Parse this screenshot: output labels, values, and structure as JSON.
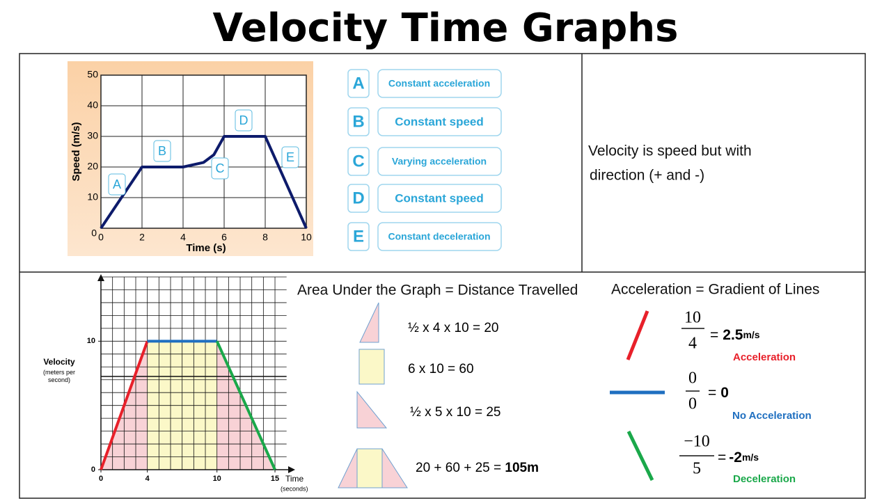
{
  "title": "Velocity Time Graphs",
  "chart_data": [
    {
      "type": "line",
      "x": [
        0,
        2,
        4,
        5,
        5.5,
        6,
        8,
        10
      ],
      "values": [
        0,
        20,
        20,
        21.5,
        24,
        30,
        30,
        0
      ],
      "xlabel": "Time (s)",
      "ylabel": "Speed (m/s)",
      "xlim": [
        0,
        10
      ],
      "ylim": [
        0,
        50
      ],
      "xticks": [
        0,
        2,
        4,
        6,
        8,
        10
      ],
      "yticks": [
        0,
        10,
        20,
        30,
        40,
        50
      ],
      "grid": true,
      "color": "#0d1b6b",
      "annotations": [
        "A",
        "B",
        "C",
        "D",
        "E"
      ]
    },
    {
      "type": "line",
      "xlabel": "Time",
      "xlabel_note": "(seconds)",
      "ylabel": "Velocity",
      "ylabel_note": "(meters per second)",
      "xlim": [
        0,
        16
      ],
      "ylim": [
        0,
        15
      ],
      "xticks": [
        0,
        4,
        10,
        15
      ],
      "yticks": [
        0,
        10
      ],
      "grid": true,
      "series": [
        {
          "color": "#e8202a",
          "fill": "#f8d2d6",
          "x": [
            0,
            4
          ],
          "values": [
            0,
            10
          ]
        },
        {
          "color": "#1f6fc0",
          "fill": "#fbf8c8",
          "x": [
            4,
            10
          ],
          "values": [
            10,
            10
          ]
        },
        {
          "color": "#1aa84a",
          "fill": "#f8d2d6",
          "x": [
            10,
            15
          ],
          "values": [
            10,
            0
          ]
        }
      ]
    }
  ],
  "key": [
    {
      "letter": "A",
      "text": "Constant acceleration"
    },
    {
      "letter": "B",
      "text": "Constant speed"
    },
    {
      "letter": "C",
      "text": "Varying acceleration"
    },
    {
      "letter": "D",
      "text": "Constant speed"
    },
    {
      "letter": "E",
      "text": "Constant deceleration"
    }
  ],
  "note": [
    "Velocity is speed but with",
    "direction (+ and -)"
  ],
  "area": {
    "heading": "Area Under the Graph = Distance Travelled",
    "rows": [
      "½ x 4 x 10 = 20",
      "6 x 10 = 60",
      "½ x 5 x 10 = 25"
    ],
    "total": {
      "text": "20 + 60 + 25 = ",
      "bold": "105m"
    }
  },
  "gradient": {
    "heading": "Acceleration = Gradient of Lines",
    "items": [
      {
        "num": "10",
        "den": "4",
        "prefix": "=",
        "value": "2.5",
        "unit": "m/s",
        "caption": "Acceleration"
      },
      {
        "num": "0",
        "den": "0",
        "prefix": "=",
        "value": "0",
        "caption": "No Acceleration"
      },
      {
        "num": "−10",
        "den": "5",
        "prefix": "=",
        "value": "-2",
        "unit": "m/s",
        "caption": "Deceleration"
      }
    ]
  }
}
